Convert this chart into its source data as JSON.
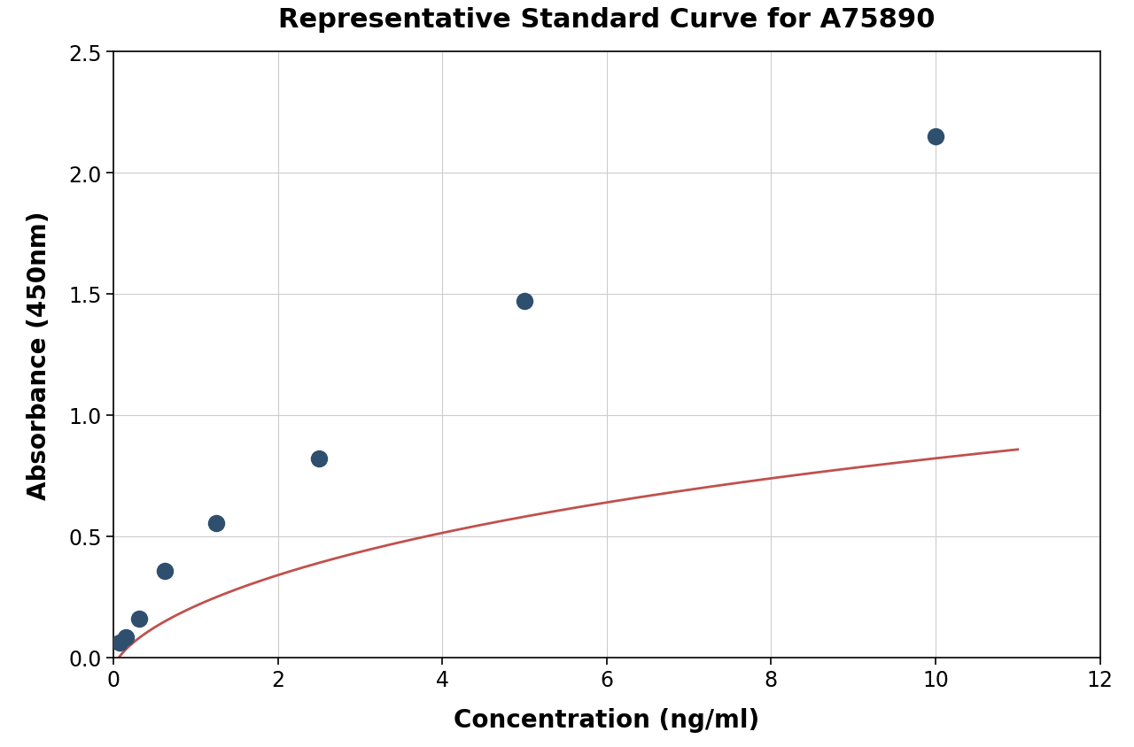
{
  "title": "Representative Standard Curve for A75890",
  "xlabel": "Concentration (ng/ml)",
  "ylabel": "Absorbance (450nm)",
  "scatter_x": [
    0.078,
    0.156,
    0.313,
    0.625,
    1.25,
    2.5,
    5.0,
    10.0
  ],
  "scatter_y": [
    0.06,
    0.082,
    0.16,
    0.355,
    0.555,
    0.82,
    1.47,
    2.15
  ],
  "scatter_color": "#2e4f6e",
  "curve_color": "#c0514d",
  "xlim": [
    0,
    12
  ],
  "ylim": [
    0.0,
    2.5
  ],
  "xticks": [
    0,
    2,
    4,
    6,
    8,
    10,
    12
  ],
  "yticks": [
    0.0,
    0.5,
    1.0,
    1.5,
    2.0,
    2.5
  ],
  "title_fontsize": 22,
  "label_fontsize": 20,
  "tick_fontsize": 17,
  "marker_size": 13,
  "curve_linewidth": 2.0,
  "background_color": "#ffffff",
  "grid_color": "#cccccc",
  "curve_x_start": 0.0,
  "curve_x_end": 11.0
}
